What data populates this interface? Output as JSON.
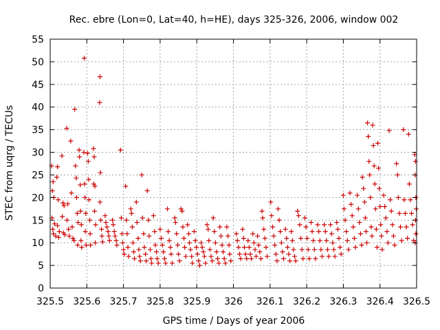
{
  "chart_data": {
    "type": "scatter",
    "title": "Rec. ebre (Lon=0, Lat=40, h=HE), days 325-326, 2006, window 002",
    "xlabel": "GPS time / Days of year 2006",
    "ylabel": "STEC from uqrg / TECUs",
    "xlim": [
      325.5,
      326.5
    ],
    "ylim": [
      0,
      55
    ],
    "xticks": [
      "325.5",
      "325.6",
      "325.7",
      "325.8",
      "325.9",
      "326",
      "326.1",
      "326.2",
      "326.3",
      "326.4",
      "326.5"
    ],
    "yticks": [
      "0",
      "5",
      "10",
      "15",
      "20",
      "25",
      "30",
      "35",
      "40",
      "45",
      "50",
      "55"
    ],
    "grid": true,
    "marker": "+",
    "color": "#cc0000",
    "points": [
      [
        325.504,
        27.0
      ],
      [
        325.508,
        23.5
      ],
      [
        325.506,
        21.5
      ],
      [
        325.51,
        20.0
      ],
      [
        325.505,
        15.5
      ],
      [
        325.512,
        14.2
      ],
      [
        325.507,
        13.0
      ],
      [
        325.509,
        12.0
      ],
      [
        325.515,
        11.5
      ],
      [
        325.52,
        26.8
      ],
      [
        325.518,
        24.5
      ],
      [
        325.522,
        19.5
      ],
      [
        325.52,
        13.8
      ],
      [
        325.525,
        12.5
      ],
      [
        325.523,
        11.2
      ],
      [
        325.532,
        29.2
      ],
      [
        325.535,
        18.8
      ],
      [
        325.538,
        18.2
      ],
      [
        325.533,
        15.8
      ],
      [
        325.536,
        12.2
      ],
      [
        325.54,
        11.8
      ],
      [
        325.545,
        35.3
      ],
      [
        325.548,
        18.6
      ],
      [
        325.546,
        15.0
      ],
      [
        325.55,
        13.0
      ],
      [
        325.552,
        11.5
      ],
      [
        325.556,
        32.5
      ],
      [
        325.558,
        21.0
      ],
      [
        325.56,
        13.5
      ],
      [
        325.562,
        11.0
      ],
      [
        325.565,
        10.5
      ],
      [
        325.567,
        39.5
      ],
      [
        325.569,
        27.0
      ],
      [
        325.571,
        24.3
      ],
      [
        325.572,
        20.0
      ],
      [
        325.574,
        16.5
      ],
      [
        325.576,
        14.5
      ],
      [
        325.575,
        9.5
      ],
      [
        325.579,
        30.5
      ],
      [
        325.58,
        29.0
      ],
      [
        325.582,
        22.8
      ],
      [
        325.583,
        17.0
      ],
      [
        325.585,
        14.0
      ],
      [
        325.584,
        10.5
      ],
      [
        325.586,
        9.0
      ],
      [
        325.593,
        50.8
      ],
      [
        325.592,
        30.0
      ],
      [
        325.594,
        23.0
      ],
      [
        325.595,
        20.0
      ],
      [
        325.597,
        16.5
      ],
      [
        325.596,
        12.5
      ],
      [
        325.598,
        9.5
      ],
      [
        325.602,
        29.8
      ],
      [
        325.604,
        28.0
      ],
      [
        325.605,
        24.0
      ],
      [
        325.606,
        19.5
      ],
      [
        325.608,
        15.0
      ],
      [
        325.609,
        12.0
      ],
      [
        325.61,
        9.5
      ],
      [
        325.618,
        30.8
      ],
      [
        325.62,
        29.0
      ],
      [
        325.619,
        23.0
      ],
      [
        325.622,
        22.5
      ],
      [
        325.621,
        17.0
      ],
      [
        325.624,
        14.0
      ],
      [
        325.623,
        10.0
      ],
      [
        325.636,
        46.7
      ],
      [
        325.635,
        41.0
      ],
      [
        325.637,
        25.5
      ],
      [
        325.636,
        19.0
      ],
      [
        325.638,
        15.0
      ],
      [
        325.64,
        13.0
      ],
      [
        325.641,
        11.5
      ],
      [
        325.643,
        10.2
      ],
      [
        325.65,
        16.0
      ],
      [
        325.652,
        14.5
      ],
      [
        325.655,
        13.5
      ],
      [
        325.658,
        12.5
      ],
      [
        325.66,
        11.5
      ],
      [
        325.662,
        10.5
      ],
      [
        325.67,
        15.0
      ],
      [
        325.672,
        14.0
      ],
      [
        325.675,
        12.5
      ],
      [
        325.677,
        11.5
      ],
      [
        325.68,
        10.5
      ],
      [
        325.682,
        9.5
      ],
      [
        325.692,
        30.5
      ],
      [
        325.694,
        15.5
      ],
      [
        325.696,
        12.0
      ],
      [
        325.698,
        10.0
      ],
      [
        325.7,
        8.5
      ],
      [
        325.702,
        7.5
      ],
      [
        325.706,
        22.5
      ],
      [
        325.708,
        15.0
      ],
      [
        325.71,
        12.0
      ],
      [
        325.712,
        9.0
      ],
      [
        325.714,
        7.0
      ],
      [
        325.72,
        17.5
      ],
      [
        325.722,
        16.5
      ],
      [
        325.724,
        13.5
      ],
      [
        325.726,
        10.0
      ],
      [
        325.728,
        8.0
      ],
      [
        325.73,
        6.5
      ],
      [
        325.735,
        19.0
      ],
      [
        325.737,
        14.5
      ],
      [
        325.74,
        11.0
      ],
      [
        325.742,
        8.5
      ],
      [
        325.744,
        7.0
      ],
      [
        325.746,
        6.0
      ],
      [
        325.75,
        25.0
      ],
      [
        325.752,
        15.5
      ],
      [
        325.755,
        12.0
      ],
      [
        325.757,
        9.0
      ],
      [
        325.76,
        7.5
      ],
      [
        325.762,
        6.0
      ],
      [
        325.765,
        21.5
      ],
      [
        325.768,
        15.0
      ],
      [
        325.77,
        11.5
      ],
      [
        325.773,
        8.5
      ],
      [
        325.775,
        6.5
      ],
      [
        325.777,
        5.5
      ],
      [
        325.782,
        16.0
      ],
      [
        325.785,
        12.5
      ],
      [
        325.787,
        9.5
      ],
      [
        325.79,
        8.0
      ],
      [
        325.792,
        6.5
      ],
      [
        325.795,
        5.5
      ],
      [
        325.8,
        13.0
      ],
      [
        325.803,
        11.0
      ],
      [
        325.806,
        9.5
      ],
      [
        325.809,
        8.0
      ],
      [
        325.812,
        6.5
      ],
      [
        325.815,
        5.5
      ],
      [
        325.82,
        17.5
      ],
      [
        325.822,
        12.5
      ],
      [
        325.825,
        10.5
      ],
      [
        325.828,
        9.0
      ],
      [
        325.83,
        7.5
      ],
      [
        325.833,
        5.5
      ],
      [
        325.84,
        15.5
      ],
      [
        325.842,
        14.5
      ],
      [
        325.845,
        12.0
      ],
      [
        325.848,
        9.5
      ],
      [
        325.85,
        7.5
      ],
      [
        325.853,
        6.0
      ],
      [
        325.857,
        17.5
      ],
      [
        325.86,
        17.0
      ],
      [
        325.862,
        13.5
      ],
      [
        325.865,
        11.0
      ],
      [
        325.867,
        9.0
      ],
      [
        325.87,
        7.0
      ],
      [
        325.875,
        14.0
      ],
      [
        325.878,
        12.0
      ],
      [
        325.88,
        10.0
      ],
      [
        325.883,
        8.5
      ],
      [
        325.886,
        7.0
      ],
      [
        325.888,
        5.5
      ],
      [
        325.893,
        12.5
      ],
      [
        325.896,
        10.5
      ],
      [
        325.899,
        9.0
      ],
      [
        325.902,
        7.5
      ],
      [
        325.905,
        6.0
      ],
      [
        325.908,
        5.0
      ],
      [
        325.912,
        10.0
      ],
      [
        325.915,
        9.0
      ],
      [
        325.918,
        8.0
      ],
      [
        325.921,
        7.0
      ],
      [
        325.924,
        5.5
      ],
      [
        325.928,
        14.0
      ],
      [
        325.931,
        13.0
      ],
      [
        325.933,
        10.5
      ],
      [
        325.936,
        8.5
      ],
      [
        325.939,
        7.0
      ],
      [
        325.942,
        6.0
      ],
      [
        325.945,
        15.5
      ],
      [
        325.948,
        12.5
      ],
      [
        325.951,
        10.0
      ],
      [
        325.954,
        8.0
      ],
      [
        325.957,
        6.5
      ],
      [
        325.96,
        5.5
      ],
      [
        325.963,
        13.5
      ],
      [
        325.966,
        11.5
      ],
      [
        325.969,
        9.5
      ],
      [
        325.972,
        8.0
      ],
      [
        325.975,
        6.5
      ],
      [
        325.978,
        5.5
      ],
      [
        325.982,
        13.5
      ],
      [
        325.985,
        11.5
      ],
      [
        325.988,
        9.5
      ],
      [
        325.99,
        7.5
      ],
      [
        325.993,
        6.0
      ],
      [
        326.008,
        12.0
      ],
      [
        326.011,
        10.5
      ],
      [
        326.014,
        9.0
      ],
      [
        326.017,
        7.5
      ],
      [
        326.02,
        6.5
      ],
      [
        326.025,
        13.0
      ],
      [
        326.028,
        11.0
      ],
      [
        326.03,
        9.0
      ],
      [
        326.033,
        7.5
      ],
      [
        326.036,
        6.5
      ],
      [
        326.04,
        10.5
      ],
      [
        326.043,
        9.0
      ],
      [
        326.046,
        7.5
      ],
      [
        326.049,
        6.5
      ],
      [
        326.053,
        12.0
      ],
      [
        326.056,
        10.0
      ],
      [
        326.059,
        8.5
      ],
      [
        326.062,
        7.0
      ],
      [
        326.066,
        11.5
      ],
      [
        326.069,
        9.5
      ],
      [
        326.072,
        8.0
      ],
      [
        326.075,
        6.5
      ],
      [
        326.078,
        17.0
      ],
      [
        326.08,
        15.5
      ],
      [
        326.083,
        13.0
      ],
      [
        326.086,
        11.0
      ],
      [
        326.089,
        9.0
      ],
      [
        326.092,
        7.0
      ],
      [
        326.102,
        19.0
      ],
      [
        326.104,
        16.0
      ],
      [
        326.107,
        13.5
      ],
      [
        326.11,
        11.5
      ],
      [
        326.113,
        9.5
      ],
      [
        326.116,
        7.5
      ],
      [
        326.119,
        6.0
      ],
      [
        326.122,
        17.5
      ],
      [
        326.125,
        15.0
      ],
      [
        326.128,
        12.5
      ],
      [
        326.131,
        10.0
      ],
      [
        326.134,
        8.0
      ],
      [
        326.137,
        6.5
      ],
      [
        326.142,
        13.0
      ],
      [
        326.145,
        11.0
      ],
      [
        326.148,
        9.0
      ],
      [
        326.151,
        7.5
      ],
      [
        326.154,
        6.0
      ],
      [
        326.158,
        12.5
      ],
      [
        326.161,
        10.5
      ],
      [
        326.164,
        8.5
      ],
      [
        326.167,
        7.0
      ],
      [
        326.17,
        6.0
      ],
      [
        326.175,
        17.0
      ],
      [
        326.178,
        16.0
      ],
      [
        326.181,
        14.0
      ],
      [
        326.184,
        11.0
      ],
      [
        326.187,
        8.5
      ],
      [
        326.19,
        6.5
      ],
      [
        326.195,
        15.5
      ],
      [
        326.198,
        13.5
      ],
      [
        326.201,
        11.0
      ],
      [
        326.204,
        8.5
      ],
      [
        326.207,
        6.5
      ],
      [
        326.212,
        14.5
      ],
      [
        326.215,
        12.5
      ],
      [
        326.218,
        10.5
      ],
      [
        326.221,
        8.5
      ],
      [
        326.224,
        6.5
      ],
      [
        326.23,
        14.0
      ],
      [
        326.233,
        12.5
      ],
      [
        326.236,
        10.5
      ],
      [
        326.239,
        8.5
      ],
      [
        326.242,
        7.0
      ],
      [
        326.248,
        14.0
      ],
      [
        326.251,
        12.5
      ],
      [
        326.254,
        10.5
      ],
      [
        326.257,
        8.5
      ],
      [
        326.26,
        7.0
      ],
      [
        326.265,
        14.0
      ],
      [
        326.268,
        12.0
      ],
      [
        326.271,
        10.0
      ],
      [
        326.274,
        8.5
      ],
      [
        326.277,
        7.0
      ],
      [
        326.282,
        14.5
      ],
      [
        326.285,
        13.0
      ],
      [
        326.288,
        11.0
      ],
      [
        326.291,
        9.0
      ],
      [
        326.294,
        7.5
      ],
      [
        326.3,
        20.5
      ],
      [
        326.302,
        17.5
      ],
      [
        326.305,
        15.0
      ],
      [
        326.308,
        12.5
      ],
      [
        326.311,
        10.5
      ],
      [
        326.314,
        8.5
      ],
      [
        326.318,
        21.0
      ],
      [
        326.321,
        18.5
      ],
      [
        326.324,
        16.0
      ],
      [
        326.327,
        13.5
      ],
      [
        326.33,
        11.0
      ],
      [
        326.333,
        9.0
      ],
      [
        326.338,
        20.5
      ],
      [
        326.341,
        17.5
      ],
      [
        326.344,
        14.5
      ],
      [
        326.347,
        12.0
      ],
      [
        326.35,
        9.5
      ],
      [
        326.352,
        24.5
      ],
      [
        326.355,
        22.0
      ],
      [
        326.358,
        19.0
      ],
      [
        326.36,
        15.5
      ],
      [
        326.362,
        12.5
      ],
      [
        326.364,
        10.0
      ],
      [
        326.366,
        36.5
      ],
      [
        326.368,
        33.5
      ],
      [
        326.37,
        28.0
      ],
      [
        326.372,
        25.0
      ],
      [
        326.374,
        20.0
      ],
      [
        326.376,
        13.5
      ],
      [
        326.378,
        11.5
      ],
      [
        326.38,
        36.0
      ],
      [
        326.382,
        31.5
      ],
      [
        326.384,
        27.0
      ],
      [
        326.386,
        23.0
      ],
      [
        326.388,
        17.5
      ],
      [
        326.39,
        13.0
      ],
      [
        326.392,
        9.0
      ],
      [
        326.394,
        32.0
      ],
      [
        326.396,
        26.5
      ],
      [
        326.398,
        22.0
      ],
      [
        326.4,
        18.0
      ],
      [
        326.402,
        14.0
      ],
      [
        326.404,
        11.5
      ],
      [
        326.406,
        8.5
      ],
      [
        326.41,
        20.5
      ],
      [
        326.413,
        18.0
      ],
      [
        326.416,
        15.5
      ],
      [
        326.419,
        12.5
      ],
      [
        326.422,
        10.0
      ],
      [
        326.425,
        34.8
      ],
      [
        326.428,
        19.5
      ],
      [
        326.431,
        17.0
      ],
      [
        326.434,
        14.0
      ],
      [
        326.437,
        11.5
      ],
      [
        326.44,
        9.5
      ],
      [
        326.445,
        27.5
      ],
      [
        326.448,
        25.0
      ],
      [
        326.45,
        20.0
      ],
      [
        326.453,
        16.5
      ],
      [
        326.456,
        13.5
      ],
      [
        326.459,
        10.5
      ],
      [
        326.464,
        35.0
      ],
      [
        326.466,
        19.5
      ],
      [
        326.469,
        16.5
      ],
      [
        326.472,
        13.5
      ],
      [
        326.475,
        11.0
      ],
      [
        326.478,
        34.0
      ],
      [
        326.48,
        23.0
      ],
      [
        326.483,
        19.5
      ],
      [
        326.486,
        16.5
      ],
      [
        326.489,
        14.0
      ],
      [
        326.492,
        10.5
      ],
      [
        326.495,
        29.5
      ],
      [
        326.497,
        28.0
      ],
      [
        326.496,
        25.0
      ],
      [
        326.498,
        20.0
      ],
      [
        326.499,
        17.5
      ],
      [
        326.497,
        15.0
      ],
      [
        326.498,
        12.0
      ],
      [
        326.496,
        10.0
      ]
    ]
  }
}
